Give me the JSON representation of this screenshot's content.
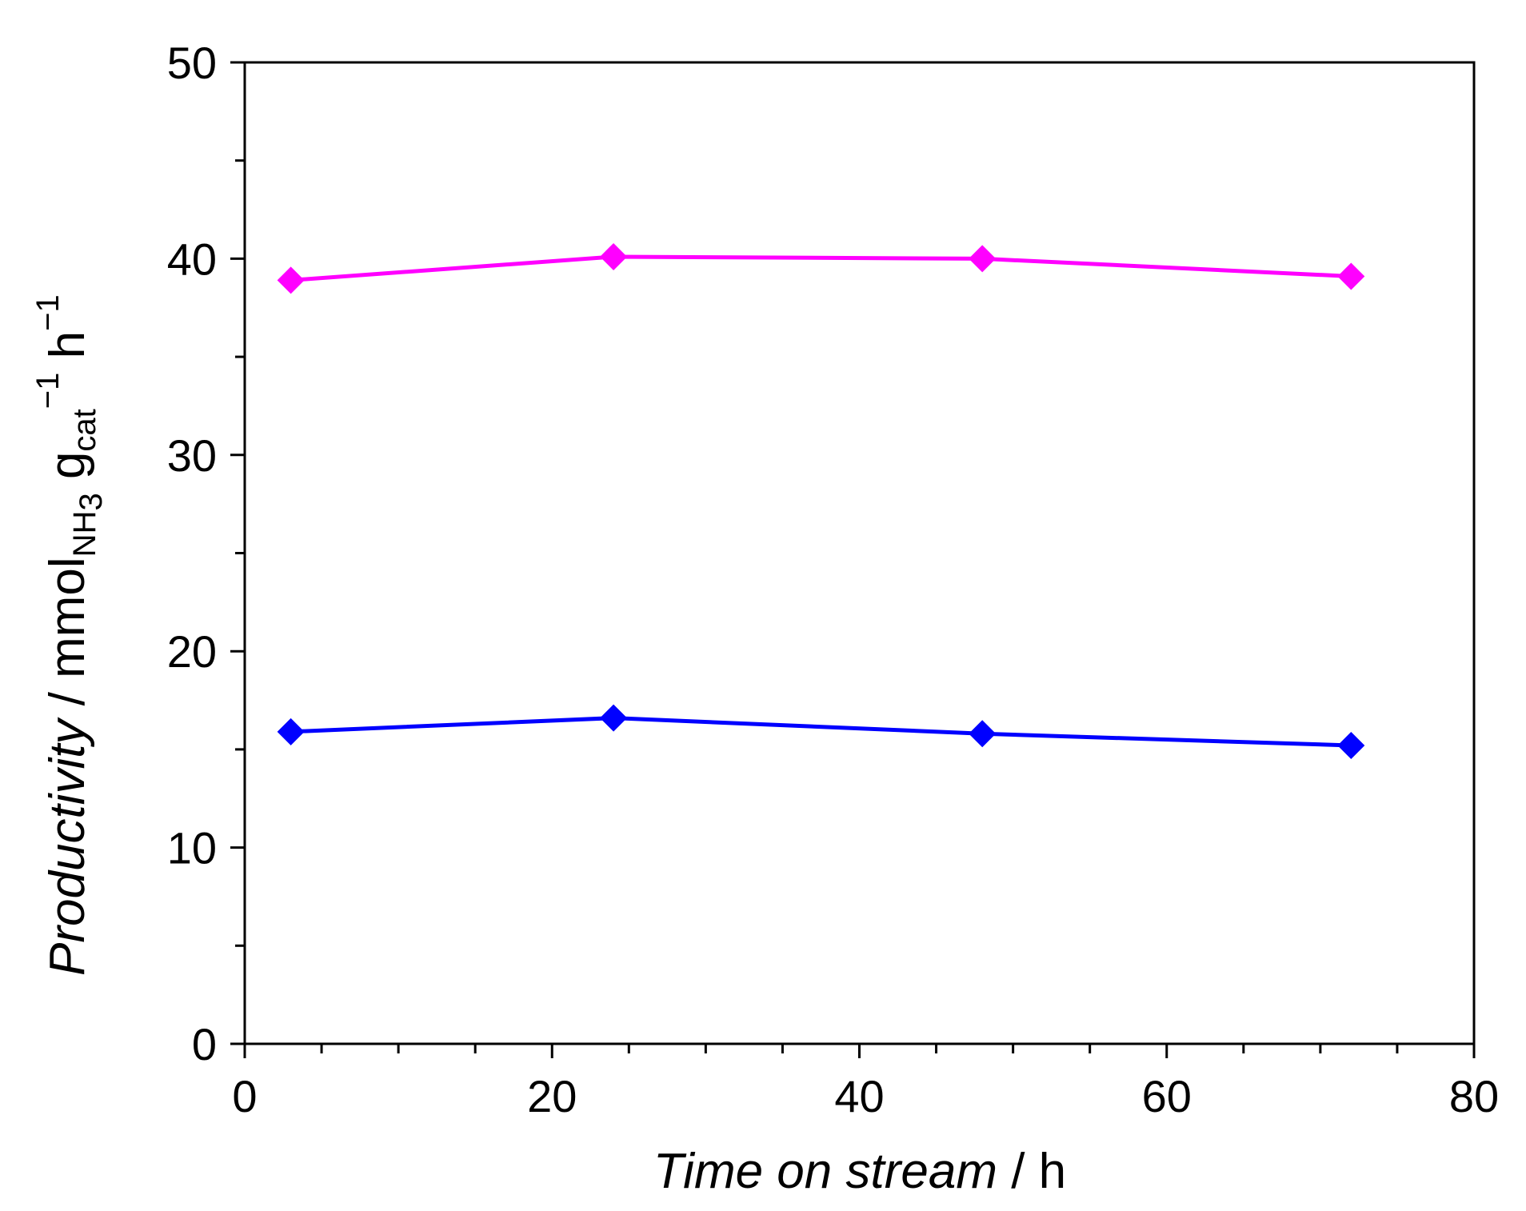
{
  "chart_data": {
    "type": "line",
    "title": "",
    "xlabel": {
      "italic": "Time on stream",
      "rest": " / h"
    },
    "ylabel": {
      "italic": "Productivity",
      "p1": " / mmol",
      "sub1": "NH",
      "sub1b": "3",
      "p2": " g",
      "sub2": "cat",
      "sup2": "−1",
      "p3": " h",
      "sup3": "−1"
    },
    "xlim": [
      0,
      80
    ],
    "ylim": [
      0,
      50
    ],
    "xticks": [
      0,
      20,
      40,
      60,
      80
    ],
    "yticks": [
      0,
      10,
      20,
      30,
      40,
      50
    ],
    "grid": false,
    "marker": "diamond",
    "series": [
      {
        "color": "#ff00ff",
        "x": [
          3,
          24,
          48,
          72
        ],
        "y": [
          38.9,
          40.1,
          40.0,
          39.1
        ]
      },
      {
        "color": "#0000ff",
        "x": [
          3,
          24,
          48,
          72
        ],
        "y": [
          15.9,
          16.6,
          15.8,
          15.2
        ]
      }
    ]
  }
}
